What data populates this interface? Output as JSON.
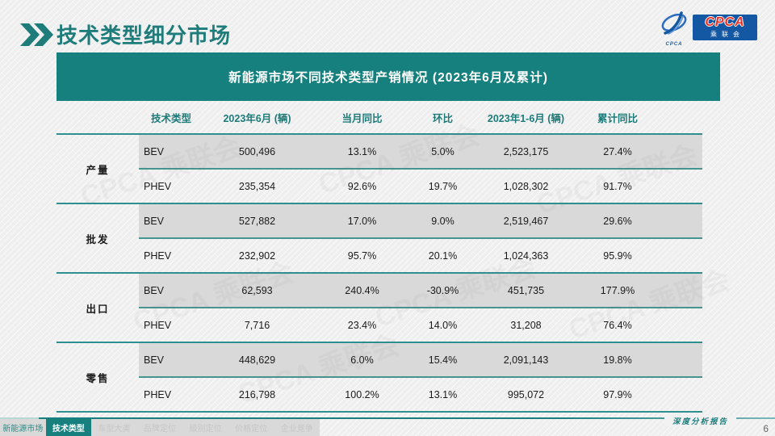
{
  "slide": {
    "title": "技术类型细分市场",
    "footer_note": "深度分析报告",
    "page_number": "6"
  },
  "logo": {
    "mark_caption": "CPCA",
    "cpca": "CPCA",
    "cn": "乘联会"
  },
  "chart_data": {
    "type": "table",
    "title": "新能源市场不同技术类型产销情况 (2023年6月及累计)",
    "columns": [
      "技术类型",
      "2023年6月 (辆)",
      "当月同比",
      "环比",
      "2023年1-6月 (辆)",
      "累计同比"
    ],
    "groups": [
      {
        "label": "产量",
        "rows": [
          {
            "tech": "BEV",
            "values": [
              "500,496",
              "13.1%",
              "5.0%",
              "2,523,175",
              "27.4%"
            ]
          },
          {
            "tech": "PHEV",
            "values": [
              "235,354",
              "92.6%",
              "19.7%",
              "1,028,302",
              "91.7%"
            ]
          }
        ]
      },
      {
        "label": "批发",
        "rows": [
          {
            "tech": "BEV",
            "values": [
              "527,882",
              "17.0%",
              "9.0%",
              "2,519,467",
              "29.6%"
            ]
          },
          {
            "tech": "PHEV",
            "values": [
              "232,902",
              "95.7%",
              "20.1%",
              "1,024,363",
              "95.9%"
            ]
          }
        ]
      },
      {
        "label": "出口",
        "rows": [
          {
            "tech": "BEV",
            "values": [
              "62,593",
              "240.4%",
              "-30.9%",
              "451,735",
              "177.9%"
            ]
          },
          {
            "tech": "PHEV",
            "values": [
              "7,716",
              "23.4%",
              "14.0%",
              "31,208",
              "76.4%"
            ]
          }
        ]
      },
      {
        "label": "零售",
        "rows": [
          {
            "tech": "BEV",
            "values": [
              "448,629",
              "6.0%",
              "15.4%",
              "2,091,143",
              "19.8%"
            ]
          },
          {
            "tech": "PHEV",
            "values": [
              "216,798",
              "100.2%",
              "13.1%",
              "995,072",
              "97.9%"
            ]
          }
        ]
      }
    ]
  },
  "tabs": [
    {
      "label": "新能源市场",
      "active": false,
      "highlight": true
    },
    {
      "label": "技术类型",
      "active": true,
      "highlight": false
    },
    {
      "label": "车型大类",
      "active": false,
      "highlight": false
    },
    {
      "label": "品牌定位",
      "active": false,
      "highlight": false
    },
    {
      "label": "级别定位",
      "active": false,
      "highlight": false
    },
    {
      "label": "价格定位",
      "active": false,
      "highlight": false
    },
    {
      "label": "企业竞争",
      "active": false,
      "highlight": false
    }
  ],
  "watermark": {
    "text": "CPCA 乘联会"
  },
  "colors": {
    "teal": "#17807e",
    "row_gray": "#d9d9d9",
    "logo_blue": "#1457a3",
    "logo_red": "#e8332a"
  }
}
